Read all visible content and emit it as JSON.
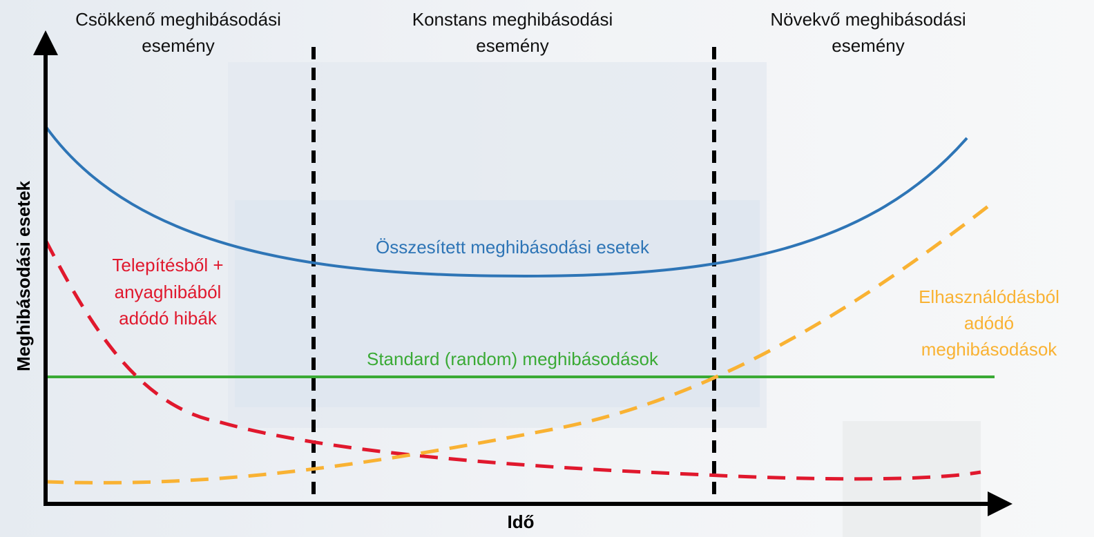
{
  "regions": [
    {
      "lines": [
        "Csökkenő meghibásodási",
        "esemény"
      ]
    },
    {
      "lines": [
        "Konstans meghibásodási",
        "esemény"
      ]
    },
    {
      "lines": [
        "Növekvő meghibásodási",
        "esemény"
      ]
    }
  ],
  "axes": {
    "y_label": "Meghibásodási esetek",
    "x_label": "Idő"
  },
  "curves": {
    "total": "Összesített meghibásodási esetek",
    "early": [
      "Telepítésből +",
      "anyaghibából",
      "adódó hibák"
    ],
    "random": "Standard (random) meghibásodások",
    "wearout": [
      "Elhasználódásból",
      "adódó",
      "meghibásodások"
    ]
  }
}
